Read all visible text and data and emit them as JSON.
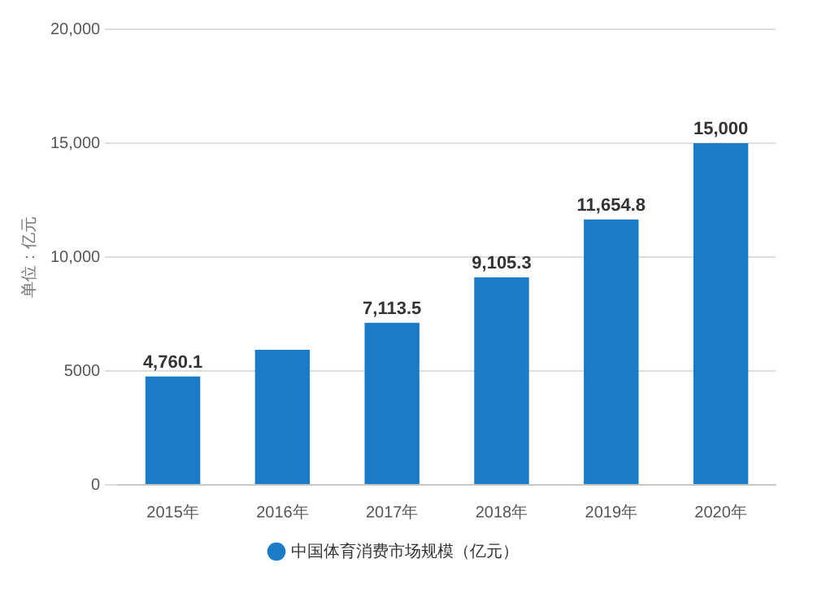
{
  "chart_data": {
    "type": "bar",
    "ylabel": "单位：亿元",
    "categories": [
      "2015年",
      "2016年",
      "2017年",
      "2018年",
      "2019年",
      "2020年"
    ],
    "series": [
      {
        "name": "中国体育消费市场规模（亿元）",
        "color": "#1a7cc9",
        "values": [
          4760.1,
          5930,
          7113.5,
          9105.3,
          11654.8,
          15000
        ],
        "value_labels": [
          "4,760.1",
          null,
          "7,113.5",
          "9,105.3",
          "11,654.8",
          "15,000"
        ]
      }
    ],
    "ylim": [
      0,
      20000
    ],
    "yticks": [
      {
        "value": 0,
        "label": "0"
      },
      {
        "value": 5000,
        "label": "5000"
      },
      {
        "value": 10000,
        "label": "10,000"
      },
      {
        "value": 15000,
        "label": "15,000"
      },
      {
        "value": 20000,
        "label": "20,000"
      }
    ],
    "grid": "y",
    "legend": "bottom"
  }
}
